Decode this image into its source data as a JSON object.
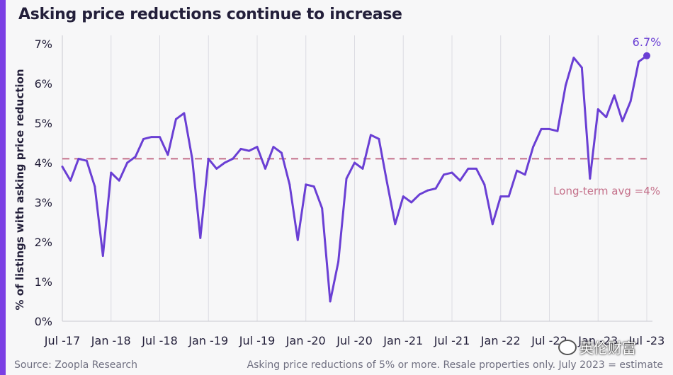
{
  "title": "Asking price reductions continue to increase",
  "footer": {
    "source": "Source: Zoopla Research",
    "note": "Asking price reductions of 5% or more. Resale properties only. July 2023 = estimate"
  },
  "watermark": {
    "text": "英伦财富",
    "icon": "wechat-icon"
  },
  "colors": {
    "accent": "#7b3fe4",
    "line": "#6a3fd4",
    "avg_line": "#c4708a",
    "grid": "#dcdce2",
    "text": "#231f3a"
  },
  "chart_data": {
    "type": "line",
    "title": "Asking price reductions continue to increase",
    "ylabel": "% of listings with asking price reduction",
    "xlabel": "",
    "ylim": [
      0,
      7
    ],
    "yticks": [
      0,
      1,
      2,
      3,
      4,
      5,
      6,
      7
    ],
    "ytick_labels": [
      "0%",
      "1%",
      "2%",
      "3%",
      "4%",
      "5%",
      "6%",
      "7%"
    ],
    "xlim": [
      0,
      72
    ],
    "xticks": [
      0,
      6,
      12,
      18,
      24,
      30,
      36,
      42,
      48,
      54,
      60,
      66,
      72
    ],
    "xtick_labels": [
      "Jul -17",
      "Jan -18",
      "Jul -18",
      "Jan -19",
      "Jul -19",
      "Jan -20",
      "Jul -20",
      "Jan -21",
      "Jul -21",
      "Jan -22",
      "Jul -22",
      "Jan -23",
      "Jul -23"
    ],
    "grid": "vertical",
    "series": [
      {
        "name": "Asking price reductions",
        "x": [
          0,
          1,
          2,
          3,
          4,
          5,
          6,
          7,
          8,
          9,
          10,
          11,
          12,
          13,
          14,
          15,
          16,
          17,
          18,
          19,
          20,
          21,
          22,
          23,
          24,
          25,
          26,
          27,
          28,
          29,
          30,
          31,
          32,
          33,
          34,
          35,
          36,
          37,
          38,
          39,
          40,
          41,
          42,
          43,
          44,
          45,
          46,
          47,
          48,
          49,
          50,
          51,
          52,
          53,
          54,
          55,
          56,
          57,
          58,
          59,
          60,
          61,
          62,
          63,
          64,
          65,
          66,
          67,
          68,
          69,
          70,
          71,
          72
        ],
        "values": [
          3.9,
          3.55,
          4.1,
          4.05,
          3.4,
          1.65,
          3.75,
          3.55,
          4.0,
          4.15,
          4.6,
          4.65,
          4.65,
          4.2,
          5.1,
          5.25,
          4.1,
          2.1,
          4.1,
          3.85,
          4.0,
          4.1,
          4.35,
          4.3,
          4.4,
          3.85,
          4.4,
          4.25,
          3.45,
          2.05,
          3.45,
          3.4,
          2.85,
          0.5,
          1.5,
          3.6,
          4.0,
          3.85,
          4.7,
          4.6,
          3.5,
          2.45,
          3.15,
          3.0,
          3.2,
          3.3,
          3.35,
          3.7,
          3.75,
          3.55,
          3.85,
          3.85,
          3.45,
          2.45,
          3.15,
          3.15,
          3.8,
          3.7,
          4.4,
          4.85,
          4.85,
          4.8,
          5.95,
          6.65,
          6.4,
          3.6,
          5.35,
          5.15,
          5.7,
          5.05,
          5.55,
          6.55,
          6.7
        ]
      }
    ],
    "reference_line": {
      "value": 4.1,
      "label": "Long-term avg =4%"
    },
    "annotations": [
      {
        "x": 72,
        "text": "6.7%"
      }
    ]
  }
}
